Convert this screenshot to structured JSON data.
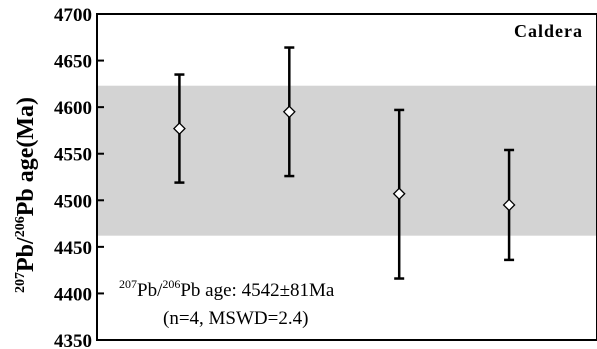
{
  "chart_data": {
    "type": "scatter",
    "panel_label": "Caldera",
    "ylabel": {
      "sup1": "207",
      "part1": "Pb/",
      "sup2": "206",
      "part2": "Pb age(Ma)"
    },
    "ylim": [
      4350,
      4700
    ],
    "yticks": [
      4350,
      4400,
      4450,
      4500,
      4550,
      4600,
      4650,
      4700
    ],
    "x": [
      1,
      2,
      3,
      4
    ],
    "xlim": [
      0.25,
      4.8
    ],
    "points": [
      {
        "x": 1,
        "age": 4577,
        "upper": 4635,
        "lower": 4519
      },
      {
        "x": 2,
        "age": 4595,
        "upper": 4664,
        "lower": 4526
      },
      {
        "x": 3,
        "age": 4507,
        "upper": 4597,
        "lower": 4416
      },
      {
        "x": 4,
        "age": 4495,
        "upper": 4554,
        "lower": 4436
      }
    ],
    "mean_band": {
      "lower": 4462,
      "upper": 4623,
      "color": "#d3d3d3"
    },
    "annotation": {
      "line1_sup1": "207",
      "line1_part1": "Pb/",
      "line1_sup2": "206",
      "line1_part2": "Pb age: 4542±81Ma",
      "line2": "(n=4, MSWD=2.4)"
    },
    "grid": false,
    "colors": {
      "marker_fill": "#ffffff",
      "marker_stroke": "#000000",
      "band": "#d3d3d3"
    }
  }
}
